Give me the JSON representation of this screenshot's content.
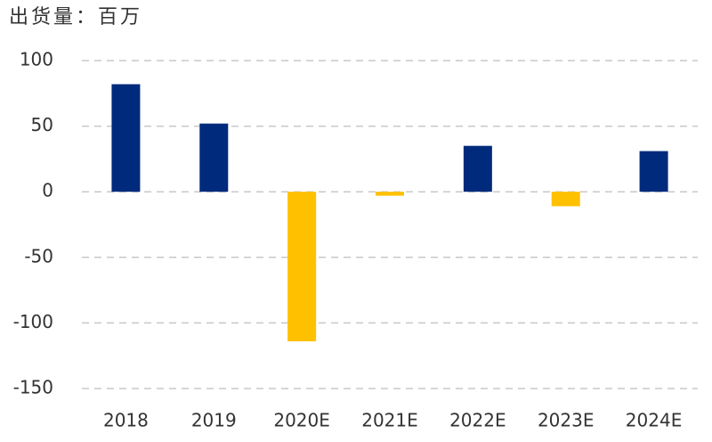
{
  "chart_data": {
    "type": "bar",
    "title": "出货量：百万",
    "categories": [
      "2018",
      "2019",
      "2020E",
      "2021E",
      "2022E",
      "2023E",
      "2024E"
    ],
    "values": [
      82,
      52,
      -114,
      -3,
      35,
      -11,
      31
    ],
    "positive_color": "#002a7c",
    "negative_color": "#ffc000",
    "ylim": [
      -150,
      100
    ],
    "yticks": [
      -150,
      -100,
      -50,
      0,
      50,
      100
    ],
    "grid": true
  }
}
